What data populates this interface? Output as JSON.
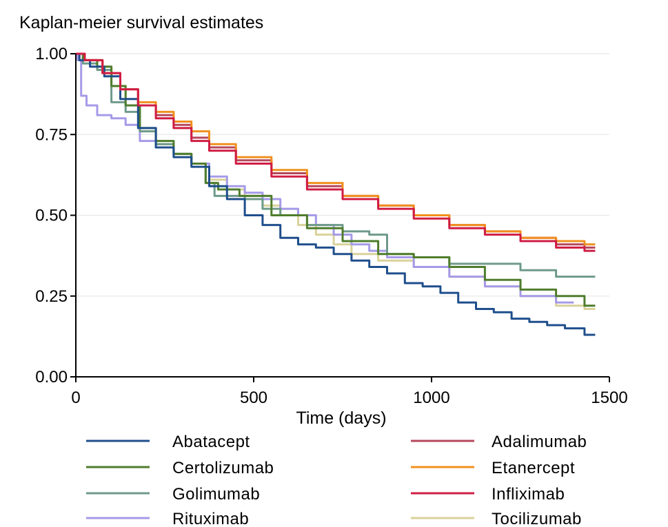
{
  "chart_data": {
    "type": "line",
    "title": "Kaplan-meier survival estimates",
    "xlabel": "Time (days)",
    "ylabel": "",
    "xlim": [
      0,
      1500
    ],
    "ylim": [
      0,
      1
    ],
    "x_ticks": [
      "0",
      "500",
      "1000",
      "1500"
    ],
    "y_ticks": [
      "0.00",
      "0.25",
      "0.50",
      "0.75",
      "1.00"
    ],
    "grid": "horizontal",
    "legend_position": "bottom",
    "series": [
      {
        "name": "Abatacept",
        "color": "#1f4e8c",
        "x": [
          0,
          20,
          60,
          100,
          150,
          200,
          250,
          300,
          350,
          400,
          450,
          500,
          550,
          600,
          650,
          700,
          750,
          800,
          850,
          900,
          950,
          1000,
          1050,
          1100,
          1150,
          1200,
          1250,
          1300,
          1350,
          1400,
          1460
        ],
        "y": [
          1.0,
          0.98,
          0.96,
          0.93,
          0.86,
          0.77,
          0.71,
          0.68,
          0.65,
          0.59,
          0.55,
          0.5,
          0.47,
          0.43,
          0.41,
          0.4,
          0.38,
          0.36,
          0.34,
          0.32,
          0.29,
          0.28,
          0.26,
          0.23,
          0.21,
          0.2,
          0.18,
          0.17,
          0.16,
          0.15,
          0.13
        ]
      },
      {
        "name": "Adalimumab",
        "color": "#b5475b",
        "x": [
          0,
          50,
          100,
          150,
          200,
          250,
          300,
          350,
          400,
          500,
          600,
          700,
          800,
          900,
          1000,
          1100,
          1200,
          1300,
          1400,
          1460
        ],
        "y": [
          1.0,
          0.98,
          0.94,
          0.89,
          0.84,
          0.81,
          0.78,
          0.74,
          0.71,
          0.67,
          0.63,
          0.59,
          0.56,
          0.53,
          0.5,
          0.47,
          0.45,
          0.43,
          0.41,
          0.4
        ]
      },
      {
        "name": "Certolizumab",
        "color": "#4f7d2c",
        "x": [
          0,
          40,
          80,
          120,
          160,
          200,
          250,
          300,
          350,
          380,
          420,
          500,
          600,
          700,
          800,
          900,
          1000,
          1100,
          1200,
          1300,
          1400,
          1460
        ],
        "y": [
          1.0,
          0.98,
          0.96,
          0.9,
          0.84,
          0.77,
          0.73,
          0.69,
          0.66,
          0.6,
          0.58,
          0.56,
          0.5,
          0.46,
          0.42,
          0.38,
          0.37,
          0.34,
          0.3,
          0.27,
          0.25,
          0.22
        ]
      },
      {
        "name": "Etanercept",
        "color": "#f0901e",
        "x": [
          0,
          50,
          100,
          150,
          200,
          250,
          300,
          350,
          400,
          500,
          600,
          700,
          800,
          900,
          1000,
          1100,
          1200,
          1300,
          1400,
          1460
        ],
        "y": [
          1.0,
          0.98,
          0.94,
          0.89,
          0.85,
          0.82,
          0.79,
          0.76,
          0.72,
          0.68,
          0.64,
          0.6,
          0.56,
          0.53,
          0.5,
          0.47,
          0.45,
          0.43,
          0.42,
          0.41
        ]
      },
      {
        "name": "Golimumab",
        "color": "#6e9a8a",
        "x": [
          0,
          40,
          80,
          120,
          160,
          200,
          250,
          300,
          350,
          380,
          400,
          450,
          500,
          550,
          600,
          700,
          800,
          850,
          900,
          1000,
          1100,
          1200,
          1300,
          1400,
          1460
        ],
        "y": [
          1.0,
          0.97,
          0.95,
          0.85,
          0.82,
          0.76,
          0.72,
          0.69,
          0.66,
          0.6,
          0.56,
          0.56,
          0.55,
          0.52,
          0.5,
          0.47,
          0.45,
          0.44,
          0.38,
          0.37,
          0.35,
          0.35,
          0.33,
          0.31,
          0.31
        ]
      },
      {
        "name": "Infliximab",
        "color": "#d01c44",
        "x": [
          0,
          50,
          100,
          150,
          200,
          250,
          300,
          350,
          400,
          500,
          600,
          700,
          800,
          900,
          1000,
          1100,
          1200,
          1300,
          1400,
          1460
        ],
        "y": [
          1.0,
          0.98,
          0.94,
          0.89,
          0.84,
          0.8,
          0.77,
          0.73,
          0.7,
          0.66,
          0.62,
          0.58,
          0.55,
          0.52,
          0.49,
          0.46,
          0.44,
          0.42,
          0.4,
          0.39
        ]
      },
      {
        "name": "Rituximab",
        "color": "#a59ae8",
        "x": [
          0,
          10,
          20,
          40,
          80,
          120,
          160,
          200,
          250,
          300,
          350,
          400,
          450,
          500,
          550,
          600,
          650,
          700,
          750,
          800,
          850,
          900,
          1000,
          1100,
          1200,
          1300,
          1400
        ],
        "y": [
          1.0,
          0.98,
          0.87,
          0.84,
          0.81,
          0.8,
          0.78,
          0.73,
          0.71,
          0.69,
          0.66,
          0.62,
          0.59,
          0.57,
          0.55,
          0.52,
          0.5,
          0.47,
          0.44,
          0.41,
          0.39,
          0.37,
          0.34,
          0.31,
          0.28,
          0.25,
          0.23
        ]
      },
      {
        "name": "Tocilizumab",
        "color": "#d9d29a",
        "x": [
          0,
          40,
          80,
          120,
          160,
          200,
          250,
          300,
          350,
          400,
          450,
          500,
          550,
          600,
          650,
          700,
          750,
          800,
          900,
          1000,
          1100,
          1200,
          1300,
          1400,
          1460
        ],
        "y": [
          1.0,
          0.98,
          0.96,
          0.9,
          0.84,
          0.76,
          0.72,
          0.69,
          0.66,
          0.61,
          0.58,
          0.56,
          0.53,
          0.5,
          0.47,
          0.44,
          0.41,
          0.38,
          0.36,
          0.34,
          0.31,
          0.28,
          0.25,
          0.22,
          0.21
        ]
      }
    ]
  }
}
